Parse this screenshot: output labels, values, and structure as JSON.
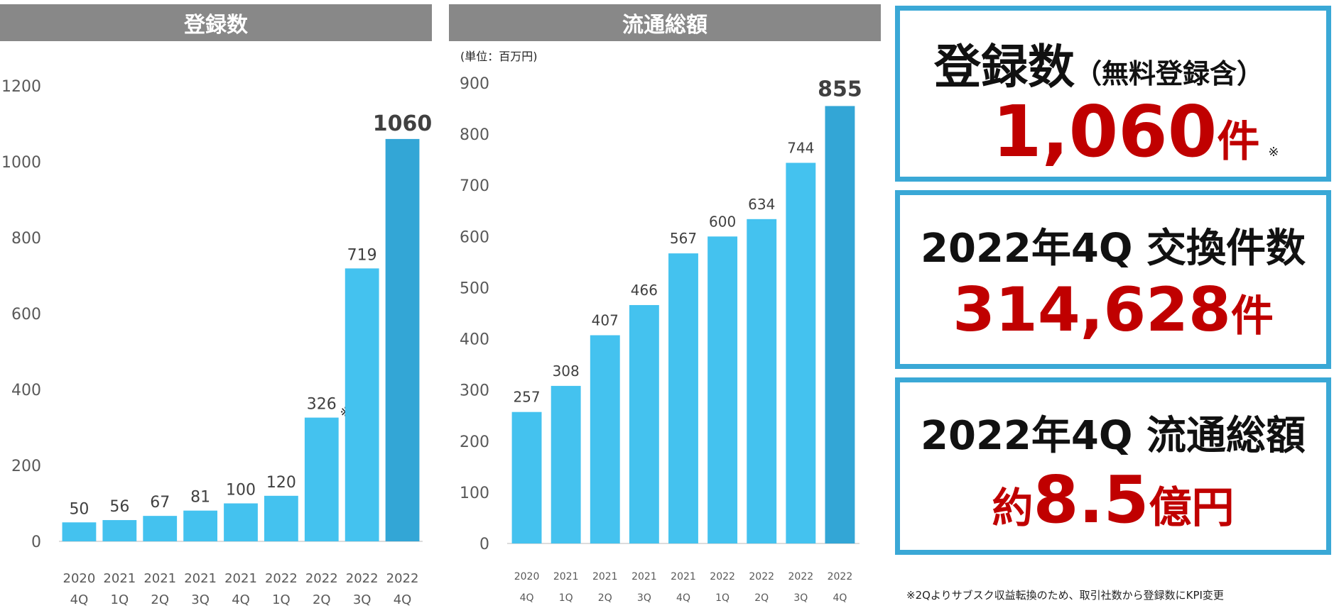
{
  "colors": {
    "bar": "#44c2ef",
    "bar_highlight": "#33a6d6",
    "header_bg": "#888888",
    "kpi_border": "#3aa8d6",
    "kpi_value": "#c00000"
  },
  "chart_data": [
    {
      "type": "bar",
      "title": "登録数",
      "xlabel": "",
      "ylabel": "",
      "ylim": [
        0,
        1200
      ],
      "yticks": [
        "0",
        "200",
        "400",
        "600",
        "800",
        "1000",
        "1200"
      ],
      "categories": [
        [
          "2020",
          "4Q"
        ],
        [
          "2021",
          "1Q"
        ],
        [
          "2021",
          "2Q"
        ],
        [
          "2021",
          "3Q"
        ],
        [
          "2021",
          "4Q"
        ],
        [
          "2022",
          "1Q"
        ],
        [
          "2022",
          "2Q"
        ],
        [
          "2022",
          "3Q"
        ],
        [
          "2022",
          "4Q"
        ]
      ],
      "values": [
        50,
        56,
        67,
        81,
        100,
        120,
        326,
        719,
        1060
      ],
      "value_labels": [
        "50",
        "56",
        "67",
        "81",
        "100",
        "120",
        "326",
        "719",
        "1060"
      ],
      "highlight_index": 8,
      "annotation": {
        "index": 6,
        "text": "※"
      }
    },
    {
      "type": "bar",
      "title": "流通総額",
      "unit_note": "(単位：百万円)",
      "xlabel": "",
      "ylabel": "",
      "ylim": [
        0,
        900
      ],
      "yticks": [
        "0",
        "100",
        "200",
        "300",
        "400",
        "500",
        "600",
        "700",
        "800",
        "900"
      ],
      "categories": [
        [
          "2020",
          "4Q"
        ],
        [
          "2021",
          "1Q"
        ],
        [
          "2021",
          "2Q"
        ],
        [
          "2021",
          "3Q"
        ],
        [
          "2021",
          "4Q"
        ],
        [
          "2022",
          "1Q"
        ],
        [
          "2022",
          "2Q"
        ],
        [
          "2022",
          "3Q"
        ],
        [
          "2022",
          "4Q"
        ]
      ],
      "values": [
        257,
        308,
        407,
        466,
        567,
        600,
        634,
        744,
        855
      ],
      "value_labels": [
        "257",
        "308",
        "407",
        "466",
        "567",
        "600",
        "634",
        "744",
        "855"
      ],
      "highlight_index": 8
    }
  ],
  "kpis": {
    "registrations": {
      "title": "登録数",
      "title_sub": "（無料登録含）",
      "value": "1,060",
      "unit": "件",
      "mark": "※"
    },
    "exchanges": {
      "title": "2022年4Q 交換件数",
      "value": "314,628",
      "unit": "件"
    },
    "gmv": {
      "title": "2022年4Q 流通総額",
      "prefix": "約",
      "value": "8.5",
      "unit": "億円"
    }
  },
  "footnote": "※2Qよりサブスク収益転換のため、取引社数から登録数にKPI変更"
}
